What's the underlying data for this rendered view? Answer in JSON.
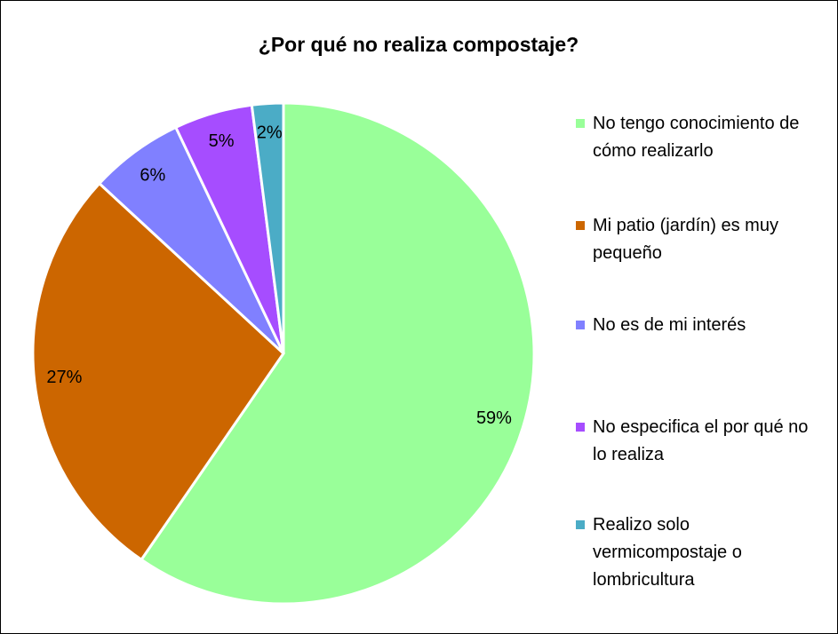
{
  "chart_data": {
    "type": "pie",
    "title": "¿Por qué no realiza compostaje?",
    "categories": [
      "No tengo conocimiento de cómo realizarlo",
      "Mi patio (jardín) es muy pequeño",
      "No es de mi interés",
      "No especifica el por qué no lo realiza",
      "Realizo solo vermicompostaje o lombricultura"
    ],
    "values": [
      59,
      27,
      6,
      5,
      2
    ],
    "value_labels": [
      "59%",
      "27%",
      "6%",
      "5%",
      "2%"
    ],
    "colors": [
      "#99ff99",
      "#cc6600",
      "#8080ff",
      "#a64dff",
      "#4bacc6"
    ],
    "legend": "right"
  }
}
